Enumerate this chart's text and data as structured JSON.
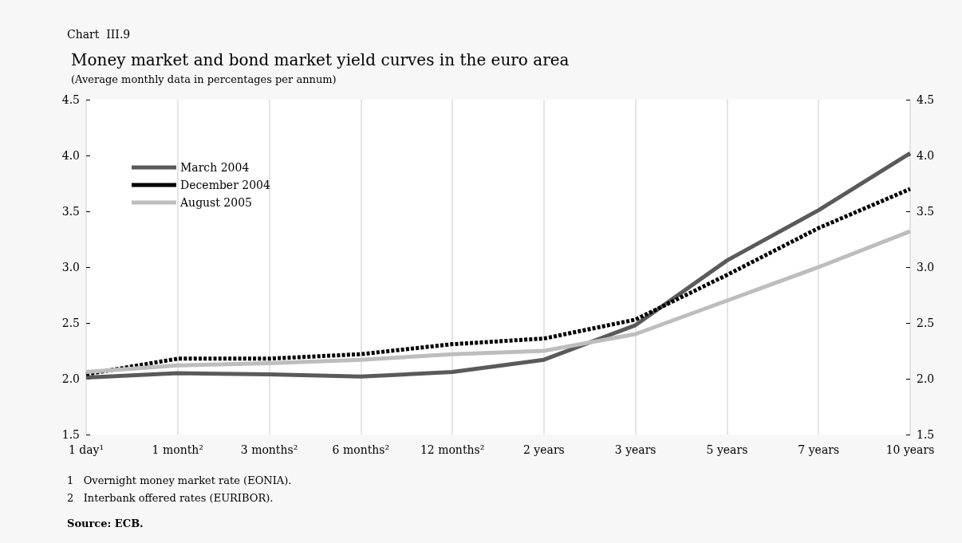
{
  "chart_data": {
    "type": "line",
    "title": "Money market and bond market yield curves in the euro area",
    "subtitle": "(Average monthly data in percentages per annum)",
    "annotations": [
      "Chart  III.9",
      "1   Overnight money market rate (EONIA).",
      "2   Interbank offered rates (EURIBOR).",
      "Source: ECB."
    ],
    "categories": [
      "1 day¹",
      "1 month²",
      "3 months²",
      "6 months²",
      "12 months²",
      "2 years",
      "3 years",
      "5 years",
      "7 years",
      "10 years"
    ],
    "series": [
      {
        "name": "March 2004",
        "color": "#5a5a5a",
        "line_style": "solid",
        "values": [
          2.01,
          2.05,
          2.04,
          2.02,
          2.06,
          2.17,
          2.48,
          3.06,
          3.51,
          4.02
        ]
      },
      {
        "name": "December 2004",
        "color": "#000000",
        "line_style": "dashed",
        "values": [
          2.04,
          2.18,
          2.18,
          2.22,
          2.31,
          2.36,
          2.53,
          2.93,
          3.35,
          3.7
        ]
      },
      {
        "name": "August 2005",
        "color": "#bdbdbd",
        "line_style": "solid",
        "values": [
          2.06,
          2.12,
          2.14,
          2.17,
          2.22,
          2.25,
          2.4,
          2.7,
          3.0,
          3.32
        ]
      }
    ],
    "ylim": [
      1.5,
      4.5
    ],
    "yticks": [
      1.5,
      {
        "value": 2,
        "label": "2.0"
      },
      2.5,
      {
        "value": 3,
        "label": "3.0"
      },
      3.5,
      {
        "value": 4,
        "label": "4.0"
      },
      4.5
    ],
    "y2lim": [
      1.5,
      4.5
    ],
    "y2ticks": [
      1.5,
      {
        "value": 2,
        "label": "2.0"
      },
      2.5,
      {
        "value": 3,
        "label": "3.0"
      },
      3.5,
      {
        "value": 4,
        "label": "4.0"
      },
      4.5
    ],
    "grid": "x",
    "legend": "top left",
    "marker": "none"
  }
}
